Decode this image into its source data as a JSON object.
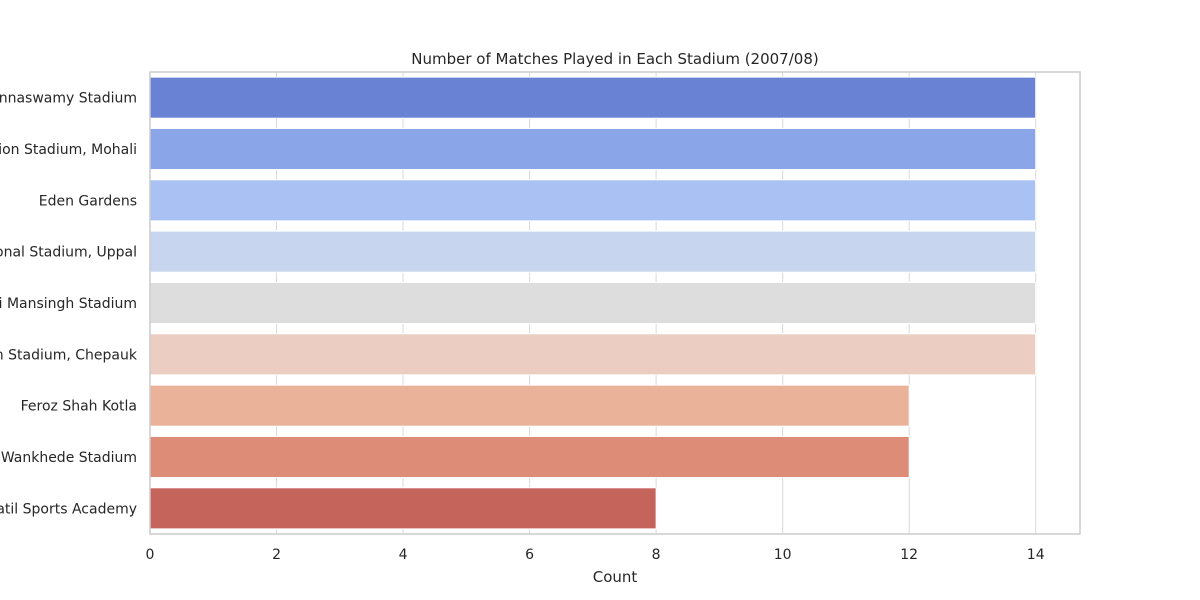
{
  "chart_data": {
    "type": "bar",
    "orientation": "horizontal",
    "title": "Number of Matches Played in Each Stadium (2007/08)",
    "xlabel": "Count",
    "ylabel": "",
    "xlim": [
      0,
      14.7
    ],
    "xticks": [
      "0",
      "2",
      "4",
      "6",
      "8",
      "10",
      "12",
      "14"
    ],
    "grid": true,
    "categories": [
      "M Chinnaswamy Stadium",
      "Punjab Cricket Association Stadium, Mohali",
      "Eden Gardens",
      "Rajiv Gandhi International Stadium, Uppal",
      "Sawai Mansingh Stadium",
      "MA Chidambaram Stadium, Chepauk",
      "Feroz Shah Kotla",
      "Wankhede Stadium",
      "Dr DY Patil Sports Academy"
    ],
    "values": [
      14,
      14,
      14,
      14,
      14,
      14,
      12,
      12,
      8
    ],
    "colors": [
      "#6a82d4",
      "#8aa6e9",
      "#aac1f4",
      "#c7d5ef",
      "#dddddd",
      "#eccdc1",
      "#ebb29a",
      "#dd8c78",
      "#c4645a"
    ]
  }
}
